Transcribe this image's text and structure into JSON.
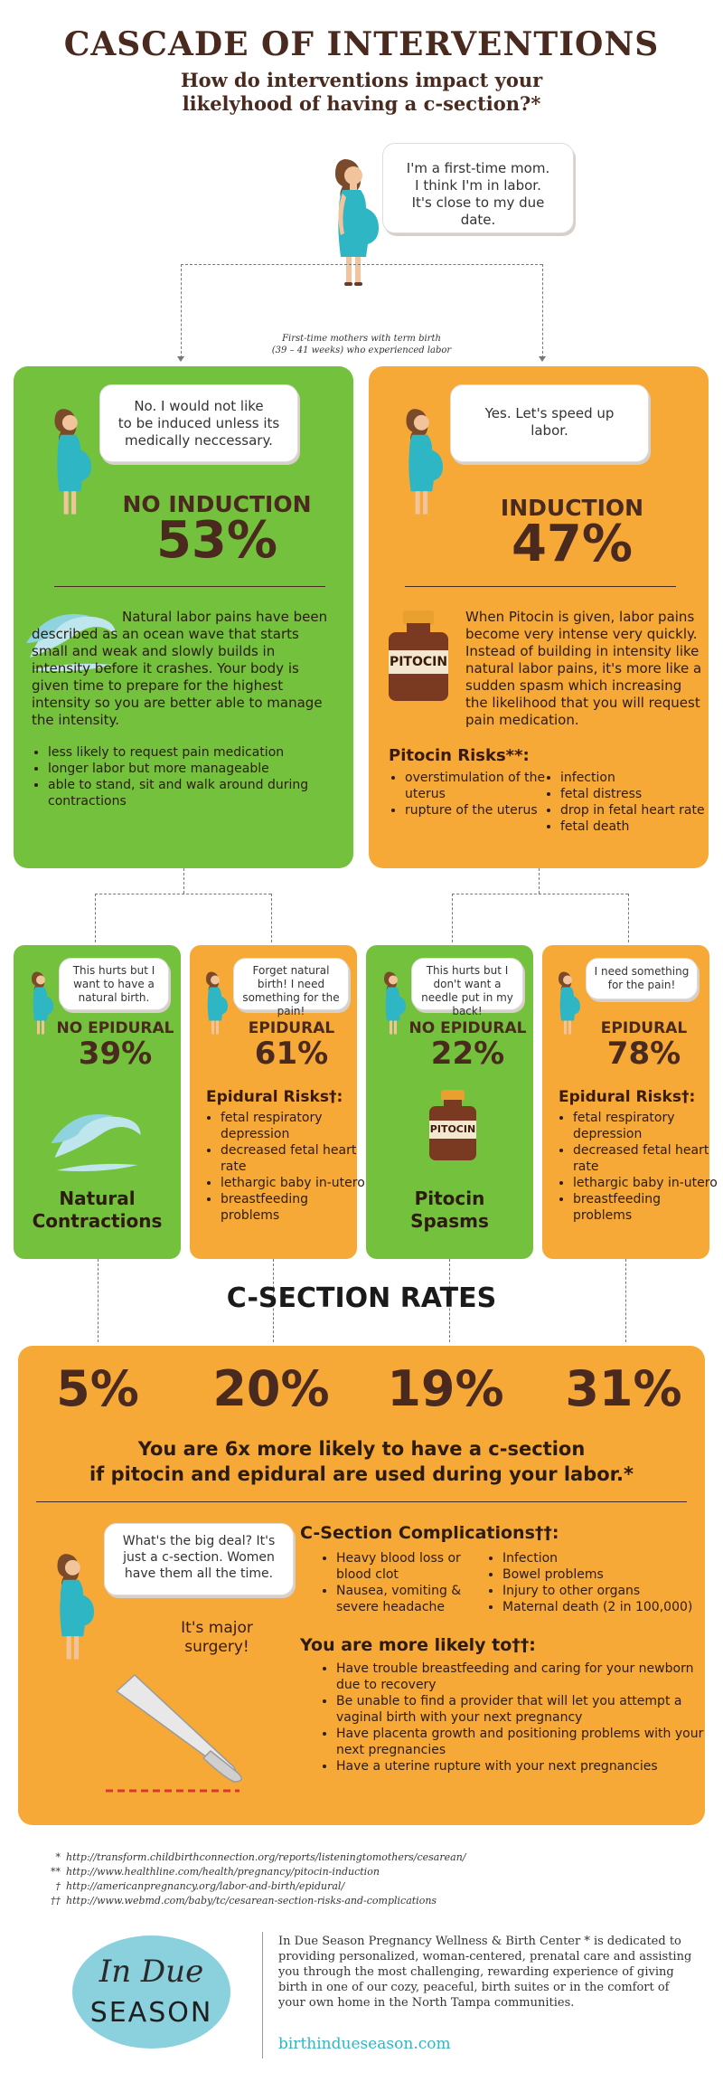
{
  "header": {
    "title": "CASCADE OF INTERVENTIONS",
    "subtitle_line1": "How do interventions impact your",
    "subtitle_line2": "likelyhood of having a c-section?*"
  },
  "intro": {
    "bubble_l1": "I'm a first-time mom.",
    "bubble_l2": "I think I'm in labor.",
    "bubble_l3": "It's close to my due date.",
    "caption_l1": "First-time mothers with term birth",
    "caption_l2": "(39 – 41 weeks) who experienced labor"
  },
  "no_induction": {
    "bubble_l1": "No. I would not like",
    "bubble_l2": "to be induced unless its",
    "bubble_l3": "medically neccessary.",
    "heading": "NO INDUCTION",
    "percent": "53%",
    "text": "Natural labor pains have been described as an ocean wave that starts small and weak and slowly builds in intensity before it crashes. Your body is given time to prepare for the highest intensity so you are better able to manage the intensity.",
    "bullets": [
      "less likely to request pain medication",
      "longer labor but more manageable",
      "able to stand, sit and walk around during contractions"
    ]
  },
  "induction": {
    "bubble_l1": "Yes. Let's speed up",
    "bubble_l2": "labor.",
    "heading": "INDUCTION",
    "percent": "47%",
    "bottle_label": "PITOCIN",
    "text": "When Pitocin is given, labor pains become very intense very quickly. Instead of building in intensity like natural labor pains, it's more like a sudden spasm which increasing the likelihood that you will request pain medication.",
    "risks_title": "Pitocin Risks**:",
    "risks_left": [
      "overstimulation of the uterus",
      "rupture of the uterus"
    ],
    "risks_right": [
      "infection",
      "fetal distress",
      "drop in fetal heart rate",
      "fetal death"
    ]
  },
  "sub": {
    "a": {
      "bubble": "This hurts but I want to have a natural birth.",
      "heading": "NO EPIDURAL",
      "percent": "39%",
      "label_l1": "Natural",
      "label_l2": "Contractions"
    },
    "b": {
      "bubble": "Forget natural birth! I need something for the pain!",
      "heading": "EPIDURAL",
      "percent": "61%",
      "risks_title": "Epidural Risks†:",
      "risks": [
        "fetal respiratory depression",
        "decreased fetal heart rate",
        "lethargic baby in-utero",
        "breastfeeding problems"
      ]
    },
    "c": {
      "bubble": "This hurts but I don't want a needle put in my back!",
      "heading": "NO EPIDURAL",
      "percent": "22%",
      "bottle_label": "PITOCIN",
      "label_l1": "Pitocin",
      "label_l2": "Spasms"
    },
    "d": {
      "bubble": "I need something for the pain!",
      "heading": "EPIDURAL",
      "percent": "78%",
      "risks_title": "Epidural Risks†:",
      "risks": [
        "fetal respiratory depression",
        "decreased fetal heart rate",
        "lethargic baby in-utero",
        "breastfeeding problems"
      ]
    }
  },
  "csection": {
    "title": "C-SECTION RATES",
    "rates": [
      "5%",
      "20%",
      "19%",
      "31%"
    ],
    "statement_l1": "You are 6x more likely to have a c-section",
    "statement_l2": "if pitocin and epidural are used during your labor.*",
    "bubble": "What's the big deal? It's just a c-section. Women have them all the time.",
    "reply_l1": "It's major",
    "reply_l2": "surgery!",
    "complications_title": "C-Section Complications††:",
    "comp_left": [
      "Heavy blood loss or blood clot",
      "Nausea, vomiting & severe headache"
    ],
    "comp_right": [
      "Infection",
      "Bowel problems",
      "Injury to other organs",
      "Maternal death (2 in 100,000)"
    ],
    "likely_title": "You are more likely to††:",
    "likely": [
      "Have trouble breastfeeding and caring for your newborn due to recovery",
      "Be unable to find a provider that will let you attempt a vaginal birth with your next pregnancy",
      "Have placenta growth and positioning problems with your next pregnancies",
      "Have a uterine rupture with your next pregnancies"
    ]
  },
  "footnotes": [
    {
      "mark": "*",
      "url": "http://transform.childbirthconnection.org/reports/listeningtomothers/cesarean/"
    },
    {
      "mark": "**",
      "url": "http://www.healthline.com/health/pregnancy/pitocin-induction"
    },
    {
      "mark": "†",
      "url": "http://americanpregnancy.org/labor-and-birth/epidural/"
    },
    {
      "mark": "††",
      "url": "http://www.webmd.com/baby/tc/cesarean-section-risks-and-complications"
    }
  ],
  "footer": {
    "logo_l1": "In Due",
    "logo_l2": "SEASON",
    "about": "In Due Season Pregnancy Wellness & Birth Center * is dedicated to providing personalized, woman-centered, prenatal care and assisting you through the most challenging, rewarding experience of giving birth in one of our cozy, peaceful, birth suites or in the comfort of your own home in the North Tampa communities.",
    "website": "birthindueseason.com"
  },
  "colors": {
    "green": "#73c13c",
    "orange": "#f6a937",
    "brown": "#4a2a1f",
    "teal": "#2fb6c4"
  }
}
